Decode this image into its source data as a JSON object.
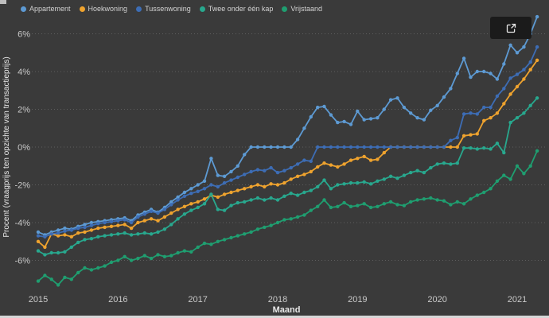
{
  "page": {
    "background": "#3a3a3a"
  },
  "toolbar": {
    "open_button": "open-in-new-window"
  },
  "chart_data": {
    "type": "line",
    "title": "",
    "xlabel": "Maand",
    "ylabel": "Procent (vraagprijs ten opzichte van transactieprijs)",
    "x_ticks": [
      "2015",
      "2016",
      "2017",
      "2018",
      "2019",
      "2020",
      "2021"
    ],
    "y_ticks": [
      {
        "value": 6,
        "label": "6%"
      },
      {
        "value": 4,
        "label": "4%"
      },
      {
        "value": 2,
        "label": "2%"
      },
      {
        "value": 0,
        "label": "0%"
      },
      {
        "value": -2,
        "label": "-2%"
      },
      {
        "value": -4,
        "label": "-4%"
      },
      {
        "value": -6,
        "label": "-6%"
      }
    ],
    "ylim": [
      -7.6,
      7
    ],
    "x_start": "2015-01",
    "x_end": "2021-04",
    "x_unit": "month",
    "grid": "horizontal-dotted",
    "legend_position": "top-left",
    "series": [
      {
        "name": "Appartement",
        "color": "#5d9ad3",
        "values": [
          -4.5,
          -4.65,
          -4.5,
          -4.4,
          -4.3,
          -4.35,
          -4.2,
          -4.1,
          -4.0,
          -3.95,
          -3.9,
          -3.85,
          -3.8,
          -3.75,
          -3.9,
          -3.6,
          -3.45,
          -3.3,
          -3.45,
          -3.2,
          -2.9,
          -2.65,
          -2.4,
          -2.2,
          -2.0,
          -1.8,
          -0.6,
          -1.5,
          -1.55,
          -1.3,
          -1.0,
          -0.4,
          0,
          0,
          0,
          0,
          0,
          0,
          0,
          0.4,
          1.0,
          1.6,
          2.1,
          2.15,
          1.7,
          1.3,
          1.35,
          1.2,
          1.9,
          1.45,
          1.5,
          1.55,
          2.0,
          2.5,
          2.6,
          2.1,
          1.8,
          1.55,
          1.45,
          1.95,
          2.2,
          2.65,
          3.1,
          3.9,
          4.7,
          3.7,
          4.0,
          4.0,
          3.9,
          3.6,
          4.4,
          5.4,
          5.0,
          5.3,
          6.0,
          6.9
        ]
      },
      {
        "name": "Hoekwoning",
        "color": "#efa32e",
        "values": [
          -5.0,
          -5.3,
          -4.6,
          -4.7,
          -4.65,
          -4.75,
          -4.55,
          -4.5,
          -4.4,
          -4.3,
          -4.25,
          -4.2,
          -4.15,
          -4.1,
          -4.3,
          -4.0,
          -3.9,
          -3.8,
          -3.9,
          -3.7,
          -3.5,
          -3.3,
          -3.15,
          -3.0,
          -2.9,
          -2.75,
          -2.55,
          -2.65,
          -2.5,
          -2.4,
          -2.3,
          -2.2,
          -2.1,
          -2.0,
          -2.1,
          -1.95,
          -2.0,
          -1.9,
          -1.7,
          -1.55,
          -1.45,
          -1.3,
          -1.05,
          -0.85,
          -0.95,
          -1.05,
          -0.9,
          -0.7,
          -0.6,
          -0.5,
          -0.7,
          -0.65,
          -0.3,
          0,
          0,
          0,
          0,
          0,
          0,
          0,
          0,
          0,
          0,
          0,
          0.6,
          0.65,
          0.7,
          1.4,
          1.55,
          1.8,
          2.3,
          2.8,
          3.2,
          3.6,
          4.1,
          4.6
        ]
      },
      {
        "name": "Tussenwoning",
        "color": "#3d6db5",
        "values": [
          -4.7,
          -4.75,
          -4.6,
          -4.55,
          -4.45,
          -4.4,
          -4.3,
          -4.25,
          -4.15,
          -4.05,
          -4.0,
          -3.95,
          -3.9,
          -3.85,
          -4.0,
          -3.7,
          -3.55,
          -3.4,
          -3.5,
          -3.3,
          -3.05,
          -2.8,
          -2.6,
          -2.45,
          -2.35,
          -2.2,
          -2.0,
          -2.1,
          -1.9,
          -1.75,
          -1.6,
          -1.45,
          -1.3,
          -1.2,
          -1.25,
          -1.1,
          -1.35,
          -1.25,
          -1.1,
          -0.9,
          -0.7,
          -0.75,
          0,
          0,
          0,
          0,
          0,
          0,
          0,
          0,
          0,
          0,
          0,
          0,
          0,
          0,
          0,
          0,
          0,
          0,
          0,
          0,
          0.35,
          0.5,
          1.75,
          1.8,
          1.75,
          2.1,
          2.1,
          2.7,
          3.1,
          3.65,
          3.85,
          4.1,
          4.5,
          5.3
        ]
      },
      {
        "name": "Twee onder één kap",
        "color": "#28a88e",
        "values": [
          -5.5,
          -5.7,
          -5.6,
          -5.6,
          -5.55,
          -5.3,
          -5.05,
          -4.9,
          -4.85,
          -4.75,
          -4.7,
          -4.65,
          -4.6,
          -4.55,
          -4.65,
          -4.6,
          -4.55,
          -4.6,
          -4.5,
          -4.35,
          -4.1,
          -3.8,
          -3.55,
          -3.35,
          -3.2,
          -3.0,
          -2.5,
          -3.3,
          -3.35,
          -3.1,
          -2.95,
          -2.9,
          -2.8,
          -2.7,
          -2.8,
          -2.7,
          -2.8,
          -2.6,
          -2.45,
          -2.55,
          -2.4,
          -2.3,
          -2.1,
          -1.75,
          -2.2,
          -2.0,
          -1.95,
          -1.9,
          -1.9,
          -1.85,
          -1.95,
          -1.8,
          -1.7,
          -1.55,
          -1.65,
          -1.5,
          -1.35,
          -1.25,
          -1.35,
          -1.1,
          -0.9,
          -0.85,
          -0.9,
          -0.85,
          -0.05,
          -0.05,
          -0.1,
          -0.05,
          -0.1,
          0.2,
          -0.3,
          1.3,
          1.55,
          1.8,
          2.2,
          2.6
        ]
      },
      {
        "name": "Vrijstaand",
        "color": "#1f9e70",
        "values": [
          -7.1,
          -6.8,
          -7.0,
          -7.3,
          -6.9,
          -7.0,
          -6.65,
          -6.4,
          -6.5,
          -6.4,
          -6.3,
          -6.1,
          -6.0,
          -5.8,
          -6.0,
          -5.9,
          -5.75,
          -5.9,
          -5.7,
          -5.8,
          -5.75,
          -5.6,
          -5.5,
          -5.55,
          -5.3,
          -5.1,
          -5.15,
          -5.0,
          -4.9,
          -4.8,
          -4.7,
          -4.6,
          -4.5,
          -4.35,
          -4.25,
          -4.15,
          -4.0,
          -3.85,
          -3.8,
          -3.7,
          -3.6,
          -3.35,
          -3.15,
          -2.8,
          -3.2,
          -3.15,
          -2.95,
          -3.15,
          -3.1,
          -3.0,
          -3.2,
          -3.15,
          -3.0,
          -2.9,
          -3.05,
          -3.1,
          -2.9,
          -2.8,
          -2.75,
          -2.7,
          -2.8,
          -2.85,
          -3.05,
          -2.9,
          -3.0,
          -2.75,
          -2.55,
          -2.4,
          -2.2,
          -1.8,
          -1.5,
          -1.7,
          -1.0,
          -1.4,
          -1.0,
          -0.2
        ]
      }
    ]
  }
}
